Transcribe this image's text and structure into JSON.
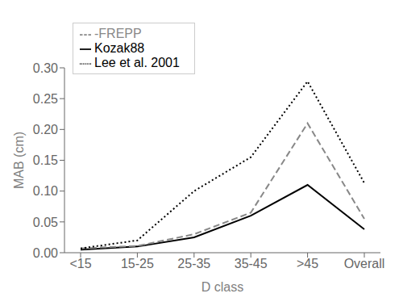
{
  "chart_data": {
    "type": "line",
    "xlabel": "D class",
    "ylabel": "MAB (cm)",
    "categories": [
      "<15",
      "15-25",
      "25-35",
      "35-45",
      ">45",
      "Overall"
    ],
    "series": [
      {
        "name": "Kozak88",
        "color": "#000000",
        "line_style": "solid",
        "values": [
          0.005,
          0.01,
          0.025,
          0.06,
          0.11,
          0.038
        ]
      },
      {
        "name": "-FREPP",
        "color": "#888888",
        "line_style": "dashed",
        "values": [
          0.007,
          0.011,
          0.03,
          0.065,
          0.21,
          0.055
        ]
      },
      {
        "name": "Lee et al. 2001",
        "color": "#000000",
        "line_style": "dotted",
        "values": [
          0.007,
          0.02,
          0.1,
          0.155,
          0.278,
          0.113
        ]
      }
    ],
    "ylim": [
      0.0,
      0.3
    ],
    "yticks": [
      {
        "value": 0.0,
        "label": "0.00"
      },
      {
        "value": 0.05,
        "label": "0.05"
      },
      {
        "value": 0.1,
        "label": "0.10"
      },
      {
        "value": 0.15,
        "label": "0.15"
      },
      {
        "value": 0.2,
        "label": "0.20"
      },
      {
        "value": 0.25,
        "label": "0.25"
      },
      {
        "value": 0.3,
        "label": "0.30"
      }
    ],
    "grid": false,
    "legend": "upper left"
  }
}
